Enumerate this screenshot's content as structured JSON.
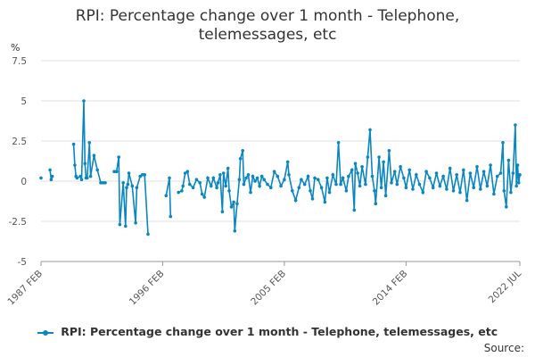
{
  "title_line1": "RPI: Percentage change over 1 month - Telephone,",
  "title_line2": "telemessages, etc",
  "source_label": "Source:",
  "chart_data": {
    "type": "line",
    "title": "RPI: Percentage change over 1 month - Telephone, telemessages, etc",
    "ylabel": "%",
    "ylim": [
      -5,
      7.5
    ],
    "yticks": [
      7.5,
      5,
      2.5,
      0,
      -2.5,
      -5
    ],
    "ytick_labels": [
      "7.5",
      "5",
      "2.5",
      "0",
      "-2.5",
      "-5"
    ],
    "x_start": "1987 FEB",
    "x_end": "2022 JUL",
    "xticks": [
      "1987 FEB",
      "1996 FEB",
      "2005 FEB",
      "2014 FEB",
      "2022 JUL"
    ],
    "grid": true,
    "legend": "bottom",
    "color": "#0a86c1",
    "series": [
      {
        "name": "RPI: Percentage change over 1 month - Telephone, telemessages, etc",
        "points": [
          [
            "1987-02",
            0.2
          ],
          [
            "1987-10",
            0.7
          ],
          [
            "1987-11",
            0.1
          ],
          [
            "1987-12",
            0.3
          ],
          [
            "1989-07",
            2.3
          ],
          [
            "1989-08",
            1.0
          ],
          [
            "1989-09",
            0.3
          ],
          [
            "1989-10",
            0.2
          ],
          [
            "1990-01",
            0.3
          ],
          [
            "1990-02",
            0.1
          ],
          [
            "1990-04",
            5.0
          ],
          [
            "1990-05",
            1.1
          ],
          [
            "1990-06",
            0.2
          ],
          [
            "1990-07",
            0.2
          ],
          [
            "1990-09",
            2.4
          ],
          [
            "1990-10",
            0.3
          ],
          [
            "1991-01",
            1.6
          ],
          [
            "1991-04",
            0.7
          ],
          [
            "1991-07",
            -0.1
          ],
          [
            "1991-09",
            -0.1
          ],
          [
            "1991-11",
            -0.1
          ],
          [
            "1992-07",
            0.6
          ],
          [
            "1992-09",
            0.6
          ],
          [
            "1992-11",
            1.5
          ],
          [
            "1992-12",
            -2.7
          ],
          [
            "1993-03",
            -0.1
          ],
          [
            "1993-05",
            -2.8
          ],
          [
            "1993-06",
            -0.4
          ],
          [
            "1993-07",
            -0.2
          ],
          [
            "1993-08",
            0.5
          ],
          [
            "1993-11",
            -0.3
          ],
          [
            "1994-02",
            -2.6
          ],
          [
            "1994-03",
            -0.4
          ],
          [
            "1994-06",
            0.3
          ],
          [
            "1994-08",
            0.4
          ],
          [
            "1994-10",
            0.4
          ],
          [
            "1995-01",
            -3.3
          ],
          [
            "1996-05",
            -0.9
          ],
          [
            "1996-08",
            0.2
          ],
          [
            "1996-09",
            -2.2
          ],
          [
            "1997-04",
            -0.7
          ],
          [
            "1997-07",
            -0.6
          ],
          [
            "1997-08",
            -0.3
          ],
          [
            "1997-10",
            0.5
          ],
          [
            "1997-12",
            0.6
          ],
          [
            "1998-02",
            -0.2
          ],
          [
            "1998-05",
            -0.4
          ],
          [
            "1998-08",
            0.1
          ],
          [
            "1998-11",
            -0.1
          ],
          [
            "1999-01",
            -0.8
          ],
          [
            "1999-03",
            -1.0
          ],
          [
            "1999-06",
            0.2
          ],
          [
            "1999-09",
            -0.3
          ],
          [
            "1999-11",
            0.2
          ],
          [
            "2000-02",
            -0.4
          ],
          [
            "2000-03",
            -0.1
          ],
          [
            "2000-05",
            0.4
          ],
          [
            "2000-07",
            -1.9
          ],
          [
            "2000-08",
            0.5
          ],
          [
            "2000-10",
            -0.3
          ],
          [
            "2000-12",
            0.8
          ],
          [
            "2001-01",
            -0.6
          ],
          [
            "2001-03",
            -1.6
          ],
          [
            "2001-05",
            -1.3
          ],
          [
            "2001-06",
            -3.1
          ],
          [
            "2001-08",
            -1.4
          ],
          [
            "2001-10",
            0.1
          ],
          [
            "2001-11",
            1.4
          ],
          [
            "2002-01",
            1.9
          ],
          [
            "2002-02",
            -0.2
          ],
          [
            "2002-04",
            0.2
          ],
          [
            "2002-06",
            0.4
          ],
          [
            "2002-08",
            -0.7
          ],
          [
            "2002-10",
            0.3
          ],
          [
            "2002-12",
            0.0
          ],
          [
            "2003-02",
            0.2
          ],
          [
            "2003-04",
            -0.3
          ],
          [
            "2003-06",
            0.3
          ],
          [
            "2003-08",
            0.1
          ],
          [
            "2003-11",
            -0.2
          ],
          [
            "2004-02",
            -0.4
          ],
          [
            "2004-05",
            0.6
          ],
          [
            "2004-08",
            0.3
          ],
          [
            "2004-11",
            -0.3
          ],
          [
            "2005-02",
            0.1
          ],
          [
            "2005-05",
            1.2
          ],
          [
            "2005-06",
            0.4
          ],
          [
            "2005-09",
            -0.6
          ],
          [
            "2005-12",
            -1.2
          ],
          [
            "2006-03",
            -0.4
          ],
          [
            "2006-05",
            0.1
          ],
          [
            "2006-08",
            -0.2
          ],
          [
            "2006-11",
            0.3
          ],
          [
            "2007-01",
            -0.6
          ],
          [
            "2007-03",
            -1.1
          ],
          [
            "2007-05",
            0.2
          ],
          [
            "2007-08",
            0.1
          ],
          [
            "2007-11",
            -0.4
          ],
          [
            "2008-02",
            -1.3
          ],
          [
            "2008-04",
            0.2
          ],
          [
            "2008-06",
            -0.7
          ],
          [
            "2008-09",
            0.4
          ],
          [
            "2008-12",
            -0.2
          ],
          [
            "2009-02",
            2.4
          ],
          [
            "2009-04",
            -0.2
          ],
          [
            "2009-06",
            0.2
          ],
          [
            "2009-09",
            -0.6
          ],
          [
            "2009-11",
            0.3
          ],
          [
            "2010-02",
            0.7
          ],
          [
            "2010-04",
            -1.8
          ],
          [
            "2010-05",
            1.1
          ],
          [
            "2010-07",
            0.5
          ],
          [
            "2010-09",
            -0.3
          ],
          [
            "2010-11",
            0.9
          ],
          [
            "2011-02",
            -0.2
          ],
          [
            "2011-04",
            1.5
          ],
          [
            "2011-06",
            3.2
          ],
          [
            "2011-08",
            0.3
          ],
          [
            "2011-10",
            -0.6
          ],
          [
            "2011-11",
            -1.4
          ],
          [
            "2012-02",
            1.5
          ],
          [
            "2012-04",
            -0.4
          ],
          [
            "2012-06",
            1.2
          ],
          [
            "2012-08",
            -0.9
          ],
          [
            "2012-11",
            1.9
          ],
          [
            "2013-01",
            -0.1
          ],
          [
            "2013-04",
            0.6
          ],
          [
            "2013-06",
            -0.2
          ],
          [
            "2013-09",
            0.9
          ],
          [
            "2013-12",
            0.2
          ],
          [
            "2014-02",
            -0.4
          ],
          [
            "2014-05",
            0.7
          ],
          [
            "2014-08",
            -0.5
          ],
          [
            "2014-11",
            0.4
          ],
          [
            "2015-02",
            -0.2
          ],
          [
            "2015-05",
            -0.7
          ],
          [
            "2015-08",
            0.6
          ],
          [
            "2015-11",
            0.2
          ],
          [
            "2016-02",
            -0.4
          ],
          [
            "2016-05",
            0.5
          ],
          [
            "2016-08",
            -0.3
          ],
          [
            "2016-11",
            0.3
          ],
          [
            "2017-02",
            -0.5
          ],
          [
            "2017-05",
            0.8
          ],
          [
            "2017-08",
            -0.6
          ],
          [
            "2017-11",
            0.4
          ],
          [
            "2018-02",
            -0.7
          ],
          [
            "2018-05",
            0.7
          ],
          [
            "2018-08",
            -1.2
          ],
          [
            "2018-11",
            0.5
          ],
          [
            "2019-02",
            -0.4
          ],
          [
            "2019-05",
            0.9
          ],
          [
            "2019-08",
            -0.5
          ],
          [
            "2019-11",
            0.6
          ],
          [
            "2020-02",
            -0.3
          ],
          [
            "2020-05",
            1.0
          ],
          [
            "2020-08",
            -0.8
          ],
          [
            "2020-11",
            0.3
          ],
          [
            "2021-02",
            0.5
          ],
          [
            "2021-04",
            2.4
          ],
          [
            "2021-05",
            -0.6
          ],
          [
            "2021-07",
            -1.6
          ],
          [
            "2021-09",
            1.3
          ],
          [
            "2021-11",
            -0.7
          ],
          [
            "2022-01",
            0.5
          ],
          [
            "2022-03",
            3.5
          ],
          [
            "2022-04",
            -0.3
          ],
          [
            "2022-05",
            1.0
          ],
          [
            "2022-06",
            -0.1
          ],
          [
            "2022-07",
            0.4
          ]
        ]
      }
    ]
  }
}
